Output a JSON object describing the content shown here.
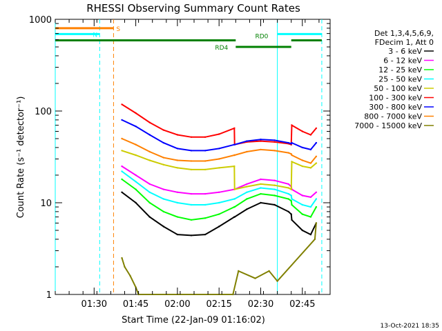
{
  "chart_data": {
    "type": "line",
    "title": "RHESSI Observing Summary Count Rates",
    "xlabel": "Start Time (22-Jan-09 01:16:02)",
    "ylabel": "Count Rate (s⁻¹ detector⁻¹)",
    "y_scale": "log",
    "ylim": [
      1,
      1000
    ],
    "x_range": [
      "01:16",
      "02:55"
    ],
    "x_ticks": [
      "01:30",
      "01:45",
      "02:00",
      "02:15",
      "02:30",
      "02:45"
    ],
    "y_ticks": [
      "1",
      "10",
      "100",
      "1000"
    ],
    "legend_header": [
      "Det 1,3,4,5,6,9,",
      "FDecim 1, Att 0"
    ],
    "legend_position": "right",
    "footer": "13-Oct-2021 18:35",
    "series": [
      {
        "name": "3 - 6 keV",
        "color": "#000000",
        "x": [
          "01:40",
          "01:45",
          "01:50",
          "01:55",
          "02:00",
          "02:05",
          "02:10",
          "02:15",
          "02:20.5",
          "02:20.6",
          "02:25",
          "02:30",
          "02:35",
          "02:40",
          "02:41",
          "02:41.2",
          "02:45",
          "02:48",
          "02:50"
        ],
        "y": [
          13,
          10,
          7,
          5.5,
          4.5,
          4.4,
          4.5,
          5.5,
          7,
          7,
          8.5,
          10,
          9.5,
          8,
          7.5,
          6.5,
          5,
          4.5,
          6
        ]
      },
      {
        "name": "6 - 12 keV",
        "color": "#ff00ff",
        "x": [
          "01:40",
          "01:45",
          "01:50",
          "01:55",
          "02:00",
          "02:05",
          "02:10",
          "02:15",
          "02:20.5",
          "02:20.6",
          "02:25",
          "02:30",
          "02:35",
          "02:40",
          "02:41",
          "02:41.2",
          "02:45",
          "02:48",
          "02:50"
        ],
        "y": [
          25,
          20,
          16,
          14,
          13,
          12.5,
          12.5,
          13,
          14,
          14,
          16,
          18,
          17.5,
          16,
          15,
          14,
          12,
          11.5,
          13
        ]
      },
      {
        "name": "12 - 25 keV",
        "color": "#00ff00",
        "x": [
          "01:40",
          "01:45",
          "01:50",
          "01:55",
          "02:00",
          "02:05",
          "02:10",
          "02:15",
          "02:20.5",
          "02:20.6",
          "02:25",
          "02:30",
          "02:35",
          "02:40",
          "02:41",
          "02:41.2",
          "02:45",
          "02:48",
          "02:50"
        ],
        "y": [
          18,
          14,
          10,
          8,
          7,
          6.5,
          6.8,
          7.5,
          9,
          9,
          11,
          12.5,
          12,
          11,
          10.5,
          9.5,
          7.5,
          7,
          9
        ]
      },
      {
        "name": "25 - 50 keV",
        "color": "#00ffff",
        "x": [
          "01:40",
          "01:45",
          "01:50",
          "01:55",
          "02:00",
          "02:05",
          "02:10",
          "02:15",
          "02:20.5",
          "02:20.6",
          "02:25",
          "02:30",
          "02:35",
          "02:40",
          "02:41",
          "02:41.2",
          "02:45",
          "02:48",
          "02:50"
        ],
        "y": [
          22,
          17,
          13,
          11,
          10,
          9.5,
          9.5,
          10,
          11,
          11,
          13,
          14.5,
          14,
          12.5,
          12,
          11,
          9.5,
          9,
          11
        ]
      },
      {
        "name": "50 - 100 keV",
        "color": "#cccc00",
        "x": [
          "01:40",
          "01:45",
          "01:50",
          "01:55",
          "02:00",
          "02:05",
          "02:10",
          "02:15",
          "02:20.5",
          "02:20.6",
          "02:25",
          "02:30",
          "02:35",
          "02:40",
          "02:41",
          "02:41.2",
          "02:45",
          "02:48",
          "02:50"
        ],
        "y": [
          37,
          33,
          29,
          26,
          24,
          23,
          23,
          24,
          25,
          14,
          15,
          16,
          15.5,
          14.5,
          14,
          28,
          25,
          24,
          27
        ]
      },
      {
        "name": "100 - 300 keV",
        "color": "#ff0000",
        "x": [
          "01:40",
          "01:45",
          "01:50",
          "01:55",
          "02:00",
          "02:05",
          "02:10",
          "02:15",
          "02:20.5",
          "02:20.6",
          "02:25",
          "02:30",
          "02:35",
          "02:40",
          "02:41",
          "02:41.2",
          "02:45",
          "02:48",
          "02:50"
        ],
        "y": [
          118,
          95,
          75,
          62,
          55,
          52,
          52,
          56,
          65,
          43,
          46,
          47,
          46,
          44,
          43,
          70,
          60,
          55,
          65
        ]
      },
      {
        "name": "300 - 800 keV",
        "color": "#0000ff",
        "x": [
          "01:40",
          "01:45",
          "01:50",
          "01:55",
          "02:00",
          "02:05",
          "02:10",
          "02:15",
          "02:20.5",
          "02:20.6",
          "02:25",
          "02:30",
          "02:35",
          "02:40",
          "02:41",
          "02:41.2",
          "02:45",
          "02:48",
          "02:50"
        ],
        "y": [
          80,
          68,
          55,
          45,
          39,
          37,
          37,
          39,
          43,
          43,
          47,
          49,
          48,
          45,
          44,
          45,
          40,
          38,
          45
        ]
      },
      {
        "name": "800 - 7000 keV",
        "color": "#ff8000",
        "x": [
          "01:40",
          "01:45",
          "01:50",
          "01:55",
          "02:00",
          "02:05",
          "02:10",
          "02:15",
          "02:20.5",
          "02:20.6",
          "02:25",
          "02:30",
          "02:35",
          "02:40",
          "02:41",
          "02:41.2",
          "02:45",
          "02:48",
          "02:50"
        ],
        "y": [
          50,
          43,
          36,
          31,
          29,
          28.5,
          28.5,
          30,
          33,
          33,
          36,
          38,
          37,
          35,
          34,
          33,
          29,
          27,
          32
        ]
      },
      {
        "name": "7000 - 15000 keV",
        "color": "#808000",
        "x": [
          "01:40",
          "01:41",
          "01:43",
          "01:45",
          "01:46",
          "02:20",
          "02:22",
          "02:28",
          "02:33",
          "02:36",
          "02:49.5",
          "02:50"
        ],
        "y": [
          2.5,
          2,
          1.6,
          1.2,
          1,
          1,
          1.8,
          1.5,
          1.8,
          1.4,
          4,
          6
        ]
      }
    ],
    "bars": [
      {
        "label": "S",
        "color": "#ff8000",
        "x_start": "01:16",
        "x_end": "01:37",
        "y": 800
      },
      {
        "label": "N",
        "color": "#00ffff",
        "x_start": "01:16",
        "x_end": "01:32",
        "y": 690
      },
      {
        "label": "N",
        "color": "#00ffff",
        "x_start": "02:36",
        "x_end": "02:52",
        "y": 690
      },
      {
        "label": "RD0",
        "color": "#008000",
        "x_start": "01:16",
        "x_end": "02:21",
        "y": 590
      },
      {
        "label": "RD0",
        "color": "#008000",
        "x_start": "02:41",
        "x_end": "02:52",
        "y": 590
      },
      {
        "label": "RD4",
        "color": "#008000",
        "x_start": "02:21",
        "x_end": "02:41",
        "y": 500
      }
    ],
    "vlines": [
      {
        "x": "01:16",
        "color": "#00ffff",
        "style": "solid"
      },
      {
        "x": "01:32",
        "color": "#00ffff",
        "style": "dashed"
      },
      {
        "x": "01:37",
        "color": "#ff8000",
        "style": "dashed"
      },
      {
        "x": "02:36",
        "color": "#00ffff",
        "style": "solid"
      },
      {
        "x": "02:52",
        "color": "#00ffff",
        "style": "dashed"
      }
    ]
  }
}
